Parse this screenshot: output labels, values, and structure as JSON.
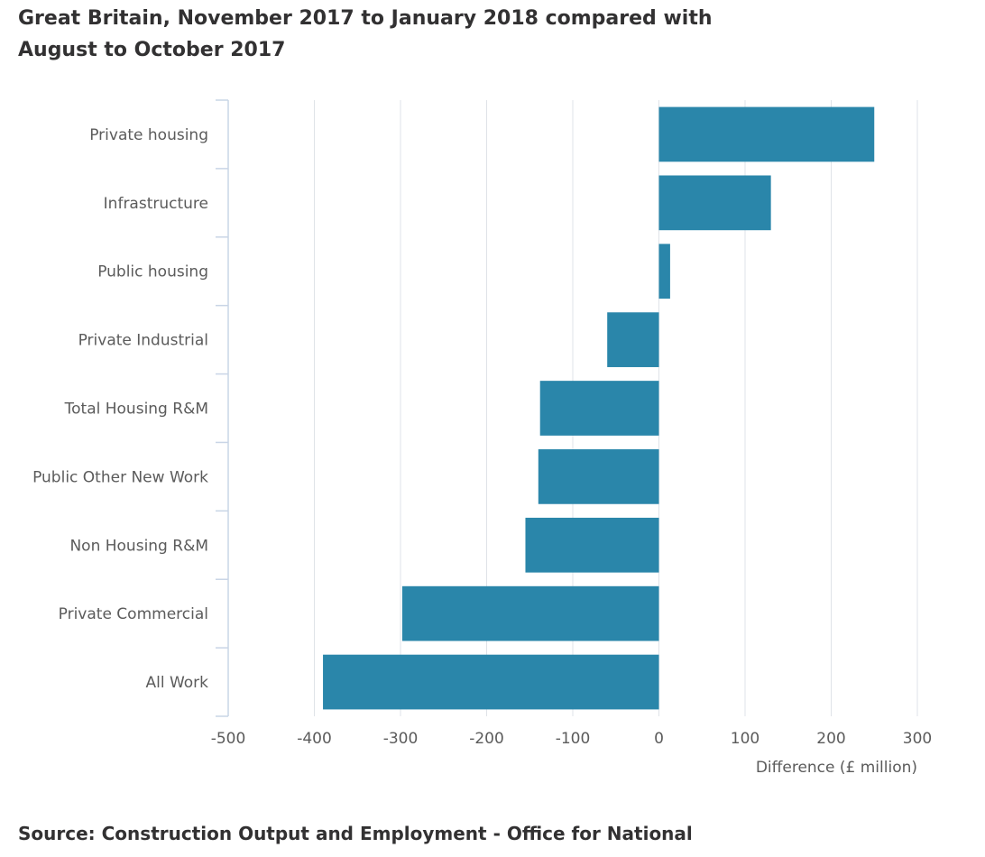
{
  "title_line1": "Great Britain, November 2017 to January 2018 compared with",
  "title_line2": "August to October 2017",
  "source": "Source: Construction Output and Employment - Office for National",
  "colors": {
    "bar": "#2a86aa",
    "grid": "#dfe3e8",
    "axis": "#c9d5e6",
    "text": "#5b5b5b"
  },
  "chart_data": {
    "type": "bar",
    "orientation": "horizontal",
    "categories": [
      "Private housing",
      "Infrastructure",
      "Public housing",
      "Private Industrial",
      "Total Housing R&M",
      "Public Other New Work",
      "Non Housing R&M",
      "Private Commercial",
      "All Work"
    ],
    "values": [
      250,
      130,
      13,
      -60,
      -138,
      -140,
      -155,
      -298,
      -390
    ],
    "xlabel": "Difference (£ million)",
    "xlim": [
      -500,
      300
    ],
    "xticks": [
      -500,
      -400,
      -300,
      -200,
      -100,
      0,
      100,
      200,
      300
    ],
    "xtick_labels": [
      "-500",
      "-400",
      "-300",
      "-200",
      "-100",
      "0",
      "100",
      "200",
      "300"
    ],
    "grid": true
  }
}
